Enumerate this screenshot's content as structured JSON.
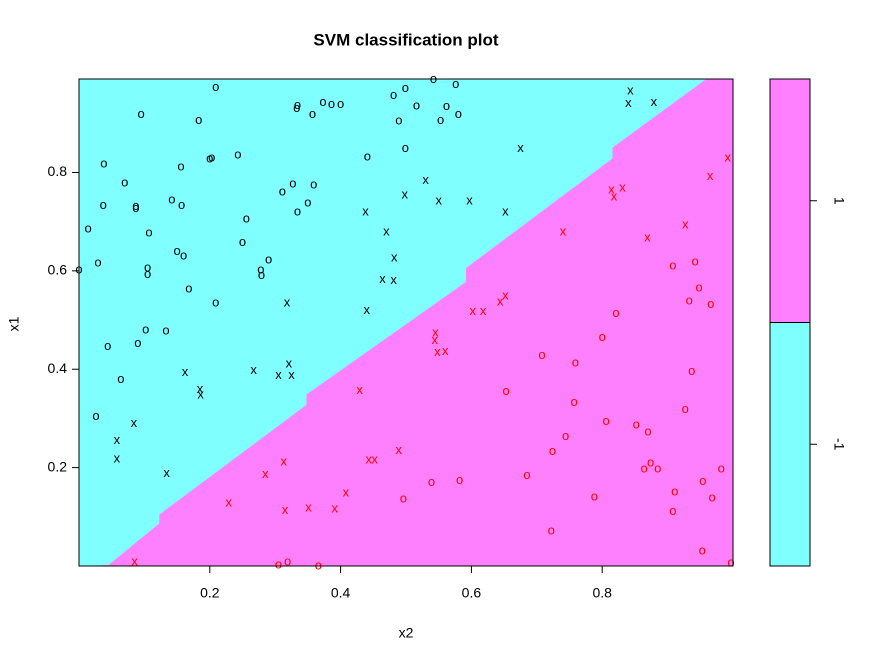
{
  "chart_data": {
    "type": "scatter",
    "title": "SVM classification plot",
    "x_label": "x2",
    "y_label": "x1",
    "xlim": [
      0,
      1
    ],
    "ylim": [
      0,
      0.99
    ],
    "xticks": [
      0.2,
      0.4,
      0.6,
      0.8
    ],
    "yticks": [
      0.2,
      0.4,
      0.6,
      0.8
    ],
    "classes": {
      "labels": [
        "-1",
        "1"
      ],
      "colors": [
        "#80ffff",
        "#ff80ff"
      ]
    },
    "boundary": {
      "x": [
        0.044,
        0.122,
        0.122,
        0.347,
        0.347,
        0.591,
        0.591,
        0.815,
        0.815,
        0.957
      ],
      "y": [
        0.002,
        0.087,
        0.105,
        0.328,
        0.349,
        0.578,
        0.606,
        0.829,
        0.851,
        0.989
      ]
    },
    "series": [
      {
        "symbol": "o",
        "color": "#000000",
        "x": [
          0.209,
          0.542,
          0.576,
          0.481,
          0.499,
          0.516,
          0.562,
          0.58,
          0.553,
          0.489,
          0.333,
          0.334,
          0.373,
          0.386,
          0.4,
          0.357,
          0.095,
          0.183,
          0.499,
          0.441,
          0.243,
          0.2,
          0.203,
          0.156,
          0.038,
          0.07,
          0.037,
          0.087,
          0.087,
          0.142,
          0.157,
          0.327,
          0.311,
          0.359,
          0.35,
          0.334,
          0.256,
          0.014,
          0.107,
          0.25,
          0.15,
          0.16,
          0.029,
          0.29,
          0.278,
          0.279,
          0.105,
          0.105,
          0.0,
          0.168,
          0.209,
          0.102,
          0.133,
          0.044,
          0.09,
          0.064,
          0.026
        ],
        "y": [
          0.973,
          0.989,
          0.979,
          0.956,
          0.971,
          0.935,
          0.934,
          0.918,
          0.906,
          0.904,
          0.93,
          0.936,
          0.942,
          0.938,
          0.938,
          0.918,
          0.918,
          0.906,
          0.849,
          0.831,
          0.835,
          0.827,
          0.829,
          0.811,
          0.817,
          0.778,
          0.733,
          0.731,
          0.727,
          0.744,
          0.733,
          0.776,
          0.76,
          0.774,
          0.738,
          0.719,
          0.705,
          0.685,
          0.677,
          0.657,
          0.639,
          0.63,
          0.616,
          0.622,
          0.602,
          0.59,
          0.606,
          0.592,
          0.602,
          0.563,
          0.535,
          0.48,
          0.478,
          0.446,
          0.452,
          0.379,
          0.304
        ]
      },
      {
        "symbol": "x",
        "color": "#000000",
        "x": [
          0.843,
          0.84,
          0.879,
          0.675,
          0.53,
          0.498,
          0.55,
          0.597,
          0.652,
          0.438,
          0.47,
          0.482,
          0.464,
          0.481,
          0.44,
          0.318,
          0.321,
          0.162,
          0.267,
          0.305,
          0.325,
          0.185,
          0.186,
          0.084,
          0.058,
          0.058,
          0.134
        ],
        "y": [
          0.965,
          0.94,
          0.942,
          0.849,
          0.784,
          0.754,
          0.742,
          0.742,
          0.719,
          0.719,
          0.679,
          0.626,
          0.582,
          0.58,
          0.519,
          0.535,
          0.411,
          0.393,
          0.397,
          0.387,
          0.387,
          0.359,
          0.347,
          0.29,
          0.255,
          0.217,
          0.188
        ]
      },
      {
        "symbol": "x",
        "color": "#ff0000",
        "x": [
          0.992,
          0.965,
          0.814,
          0.818,
          0.831,
          0.74,
          0.869,
          0.927,
          0.602,
          0.618,
          0.644,
          0.652,
          0.545,
          0.544,
          0.548,
          0.56,
          0.429,
          0.489,
          0.443,
          0.452,
          0.313,
          0.285,
          0.408,
          0.391,
          0.351,
          0.315,
          0.229,
          0.085
        ],
        "y": [
          0.829,
          0.792,
          0.764,
          0.75,
          0.768,
          0.679,
          0.667,
          0.693,
          0.517,
          0.517,
          0.537,
          0.549,
          0.474,
          0.458,
          0.434,
          0.436,
          0.357,
          0.235,
          0.215,
          0.215,
          0.211,
          0.186,
          0.148,
          0.116,
          0.118,
          0.113,
          0.128,
          0.008
        ]
      },
      {
        "symbol": "o",
        "color": "#ff0000",
        "x": [
          0.821,
          0.908,
          0.942,
          0.948,
          0.933,
          0.966,
          0.8,
          0.708,
          0.759,
          0.937,
          0.653,
          0.757,
          0.927,
          0.806,
          0.852,
          0.87,
          0.744,
          0.724,
          0.874,
          0.864,
          0.885,
          0.982,
          0.954,
          0.685,
          0.582,
          0.539,
          0.496,
          0.911,
          0.788,
          0.968,
          0.908,
          0.722,
          0.953,
          0.305,
          0.319,
          0.366,
          0.997
        ],
        "y": [
          0.513,
          0.61,
          0.618,
          0.565,
          0.539,
          0.531,
          0.464,
          0.428,
          0.413,
          0.395,
          0.355,
          0.332,
          0.318,
          0.294,
          0.286,
          0.272,
          0.263,
          0.233,
          0.209,
          0.197,
          0.197,
          0.197,
          0.172,
          0.184,
          0.174,
          0.17,
          0.136,
          0.15,
          0.14,
          0.138,
          0.111,
          0.071,
          0.03,
          0.002,
          0.008,
          0.0,
          0.006
        ]
      }
    ]
  }
}
